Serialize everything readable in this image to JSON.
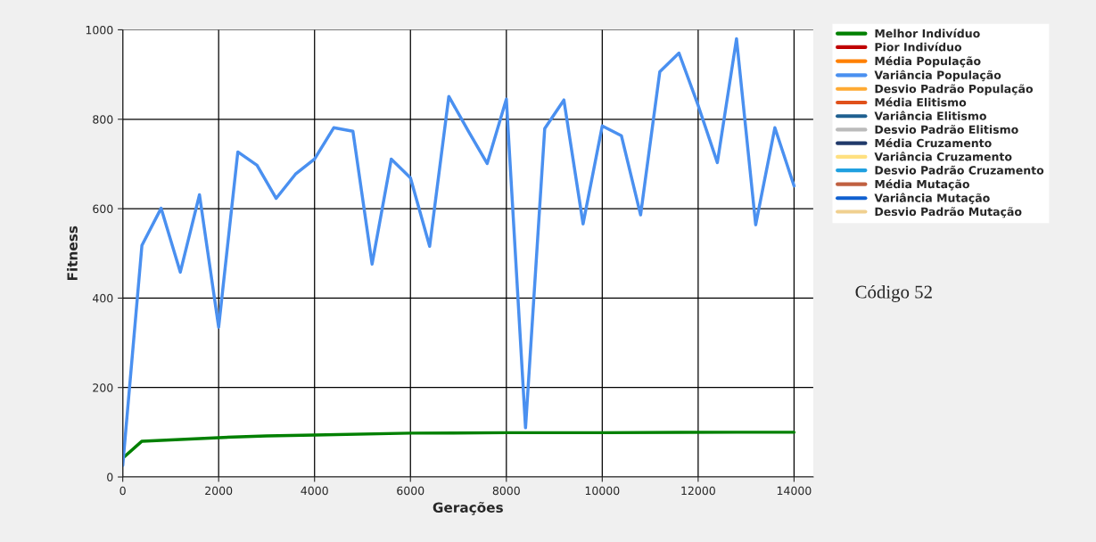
{
  "chart_data": {
    "type": "line",
    "xlabel": "Gerações",
    "ylabel": "Fitness",
    "xlim": [
      0,
      14400
    ],
    "ylim": [
      0,
      1000
    ],
    "xticks": [
      0,
      2000,
      4000,
      6000,
      8000,
      10000,
      12000,
      14000
    ],
    "yticks": [
      0,
      200,
      400,
      600,
      800,
      1000
    ],
    "grid": true,
    "legend": "top right",
    "annotations": [
      "Código 52"
    ],
    "series": [
      {
        "name": "Melhor Indivíduo",
        "color": "#008000",
        "x": [
          0,
          400,
          2000,
          3000,
          4000,
          6000,
          8000,
          10000,
          12800,
          14000
        ],
        "values": [
          42,
          80,
          88,
          92,
          94,
          98,
          99,
          99,
          100,
          100
        ]
      },
      {
        "name": "Pior Indivíduo",
        "color": "#c00000"
      },
      {
        "name": "Média População",
        "color": "#ff8000"
      },
      {
        "name": "Variância População",
        "color": "#4a90f0",
        "x": [
          0,
          400,
          800,
          1200,
          1600,
          2000,
          2400,
          2800,
          3200,
          3600,
          4000,
          4400,
          4800,
          5200,
          5600,
          6000,
          6400,
          6800,
          7200,
          7600,
          8000,
          8400,
          8800,
          9200,
          9600,
          10000,
          10400,
          10800,
          11200,
          11600,
          12000,
          12400,
          12800,
          13200,
          13600,
          14000
        ],
        "values": [
          26,
          518,
          601,
          458,
          631,
          335,
          727,
          697,
          623,
          677,
          711,
          781,
          773,
          476,
          711,
          669,
          516,
          851,
          775,
          701,
          845,
          110,
          779,
          843,
          566,
          785,
          763,
          586,
          906,
          948,
          831,
          703,
          980,
          564,
          781,
          651
        ]
      },
      {
        "name": "Desvio Padrão População",
        "color": "#ffaa33"
      },
      {
        "name": "Média Elitismo",
        "color": "#e0501a"
      },
      {
        "name": "Variância Elitismo",
        "color": "#1f6090"
      },
      {
        "name": "Desvio Padrão Elitismo",
        "color": "#bbbbbb"
      },
      {
        "name": "Média Cruzamento",
        "color": "#203a6a"
      },
      {
        "name": "Variância Cruzamento",
        "color": "#ffe080"
      },
      {
        "name": "Desvio Padrão Cruzamento",
        "color": "#20a0e0"
      },
      {
        "name": "Média Mutação",
        "color": "#c06040"
      },
      {
        "name": "Variância Mutação",
        "color": "#1060d0"
      },
      {
        "name": "Desvio Padrão Mutação",
        "color": "#f0d090"
      }
    ]
  }
}
